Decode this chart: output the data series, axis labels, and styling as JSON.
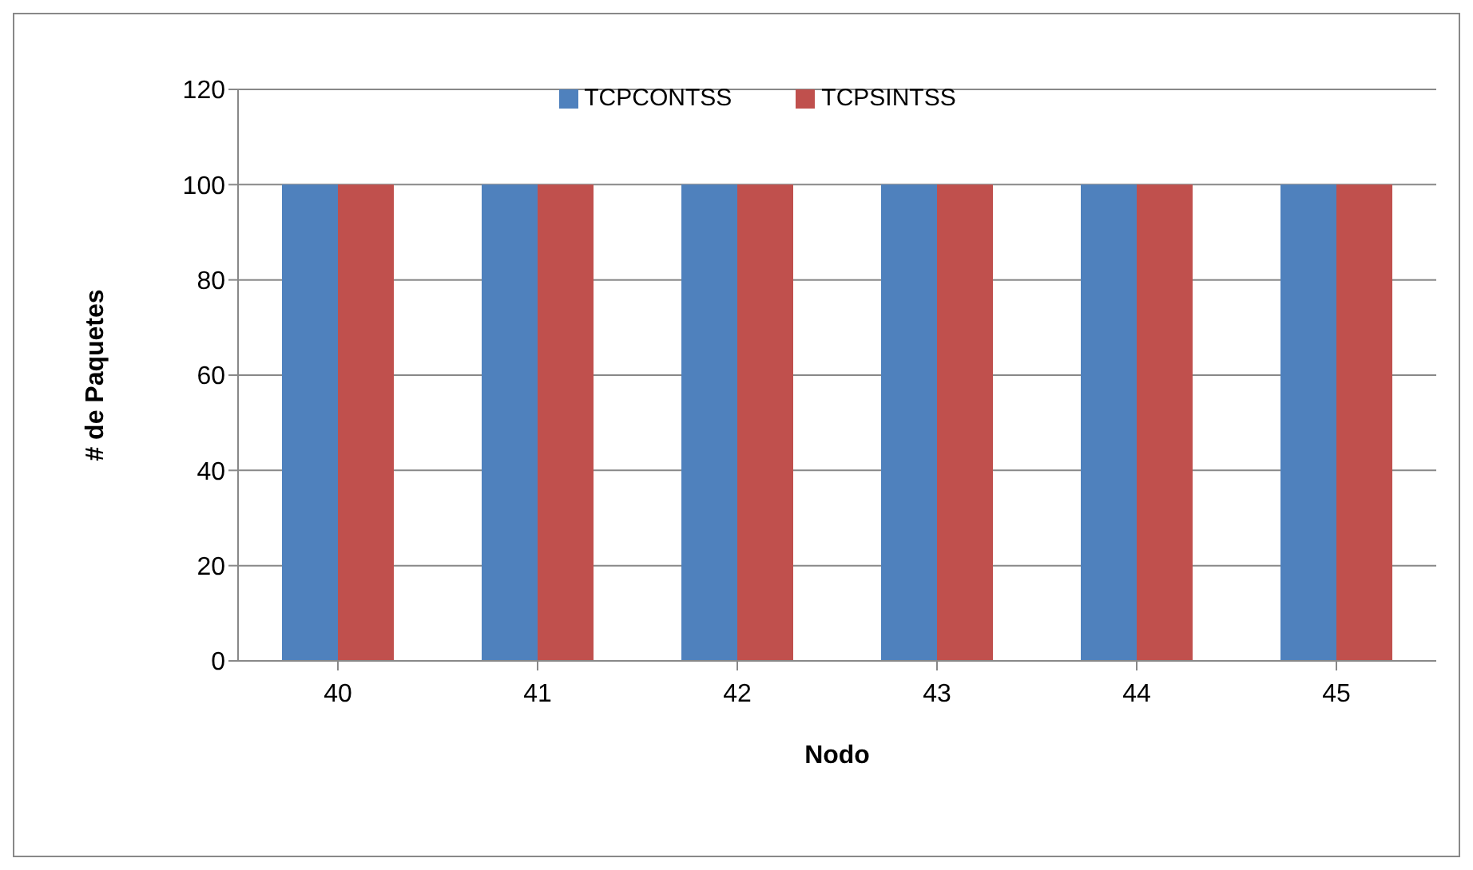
{
  "chart_data": {
    "type": "bar",
    "xlabel": "Nodo",
    "ylabel": "# de Paquetes",
    "categories": [
      "40",
      "41",
      "42",
      "43",
      "44",
      "45"
    ],
    "series": [
      {
        "name": "TCPCONTSS",
        "color": "#4f81bd",
        "values": [
          100,
          100,
          100,
          100,
          100,
          100
        ]
      },
      {
        "name": "TCPSINTSS",
        "color": "#c0504d",
        "values": [
          100,
          100,
          100,
          100,
          100,
          100
        ]
      }
    ],
    "ylim": [
      0,
      120
    ],
    "yticks": [
      0,
      20,
      40,
      60,
      80,
      100,
      120
    ],
    "grid": "y",
    "legend": "top"
  }
}
